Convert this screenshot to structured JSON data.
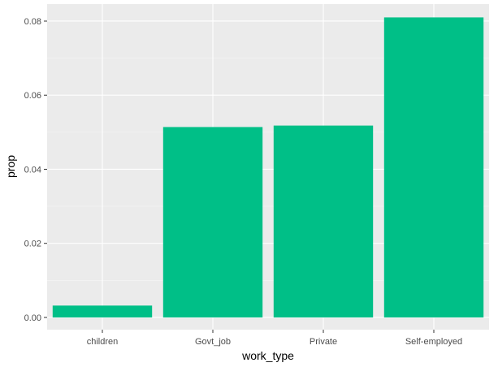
{
  "chart_data": {
    "type": "bar",
    "title": "",
    "xlabel": "work_type",
    "ylabel": "prop",
    "categories": [
      "children",
      "Govt_job",
      "Private",
      "Self-employed"
    ],
    "values": [
      0.0032,
      0.0514,
      0.0518,
      0.081
    ],
    "ylim": [
      -0.0033,
      0.0846
    ],
    "yticks": [
      0.0,
      0.02,
      0.04,
      0.06,
      0.08
    ],
    "ytick_labels": [
      "0.00",
      "0.02",
      "0.04",
      "0.06",
      "0.08"
    ],
    "bar_color": "#00BF87",
    "panel_background": "#EBEBEB",
    "grid": true,
    "legend": "none"
  }
}
